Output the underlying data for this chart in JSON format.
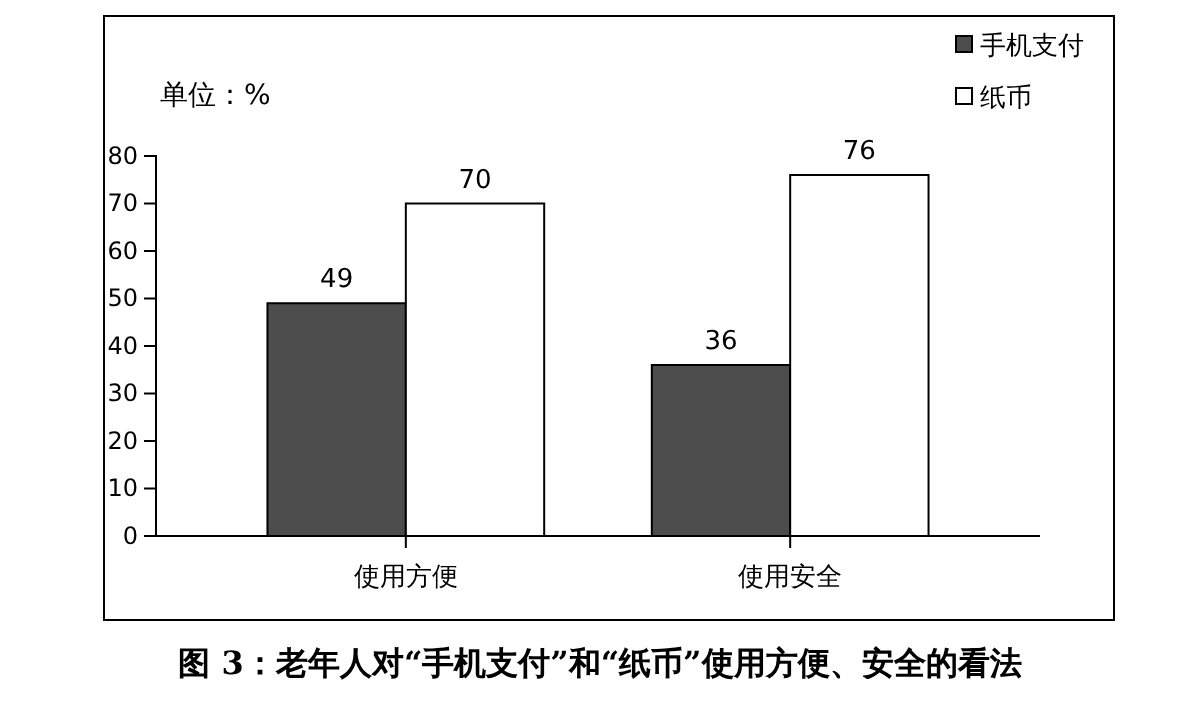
{
  "chart_data": {
    "type": "bar",
    "title": "图 3：老年人对“手机支付”和“纸币”使用方便、安全的看法",
    "annotations": [
      "单位：%"
    ],
    "categories": [
      "使用方便",
      "使用安全"
    ],
    "series": [
      {
        "name": "手机支付",
        "color": "#4d4d4d",
        "values": [
          49,
          36
        ]
      },
      {
        "name": "纸币",
        "color": "#ffffff",
        "values": [
          70,
          76
        ]
      }
    ],
    "ylim": [
      0,
      80
    ],
    "yticks": [
      0,
      10,
      20,
      30,
      40,
      50,
      60,
      70,
      80
    ],
    "grid": false,
    "legend": "top right",
    "data_labels": true
  }
}
